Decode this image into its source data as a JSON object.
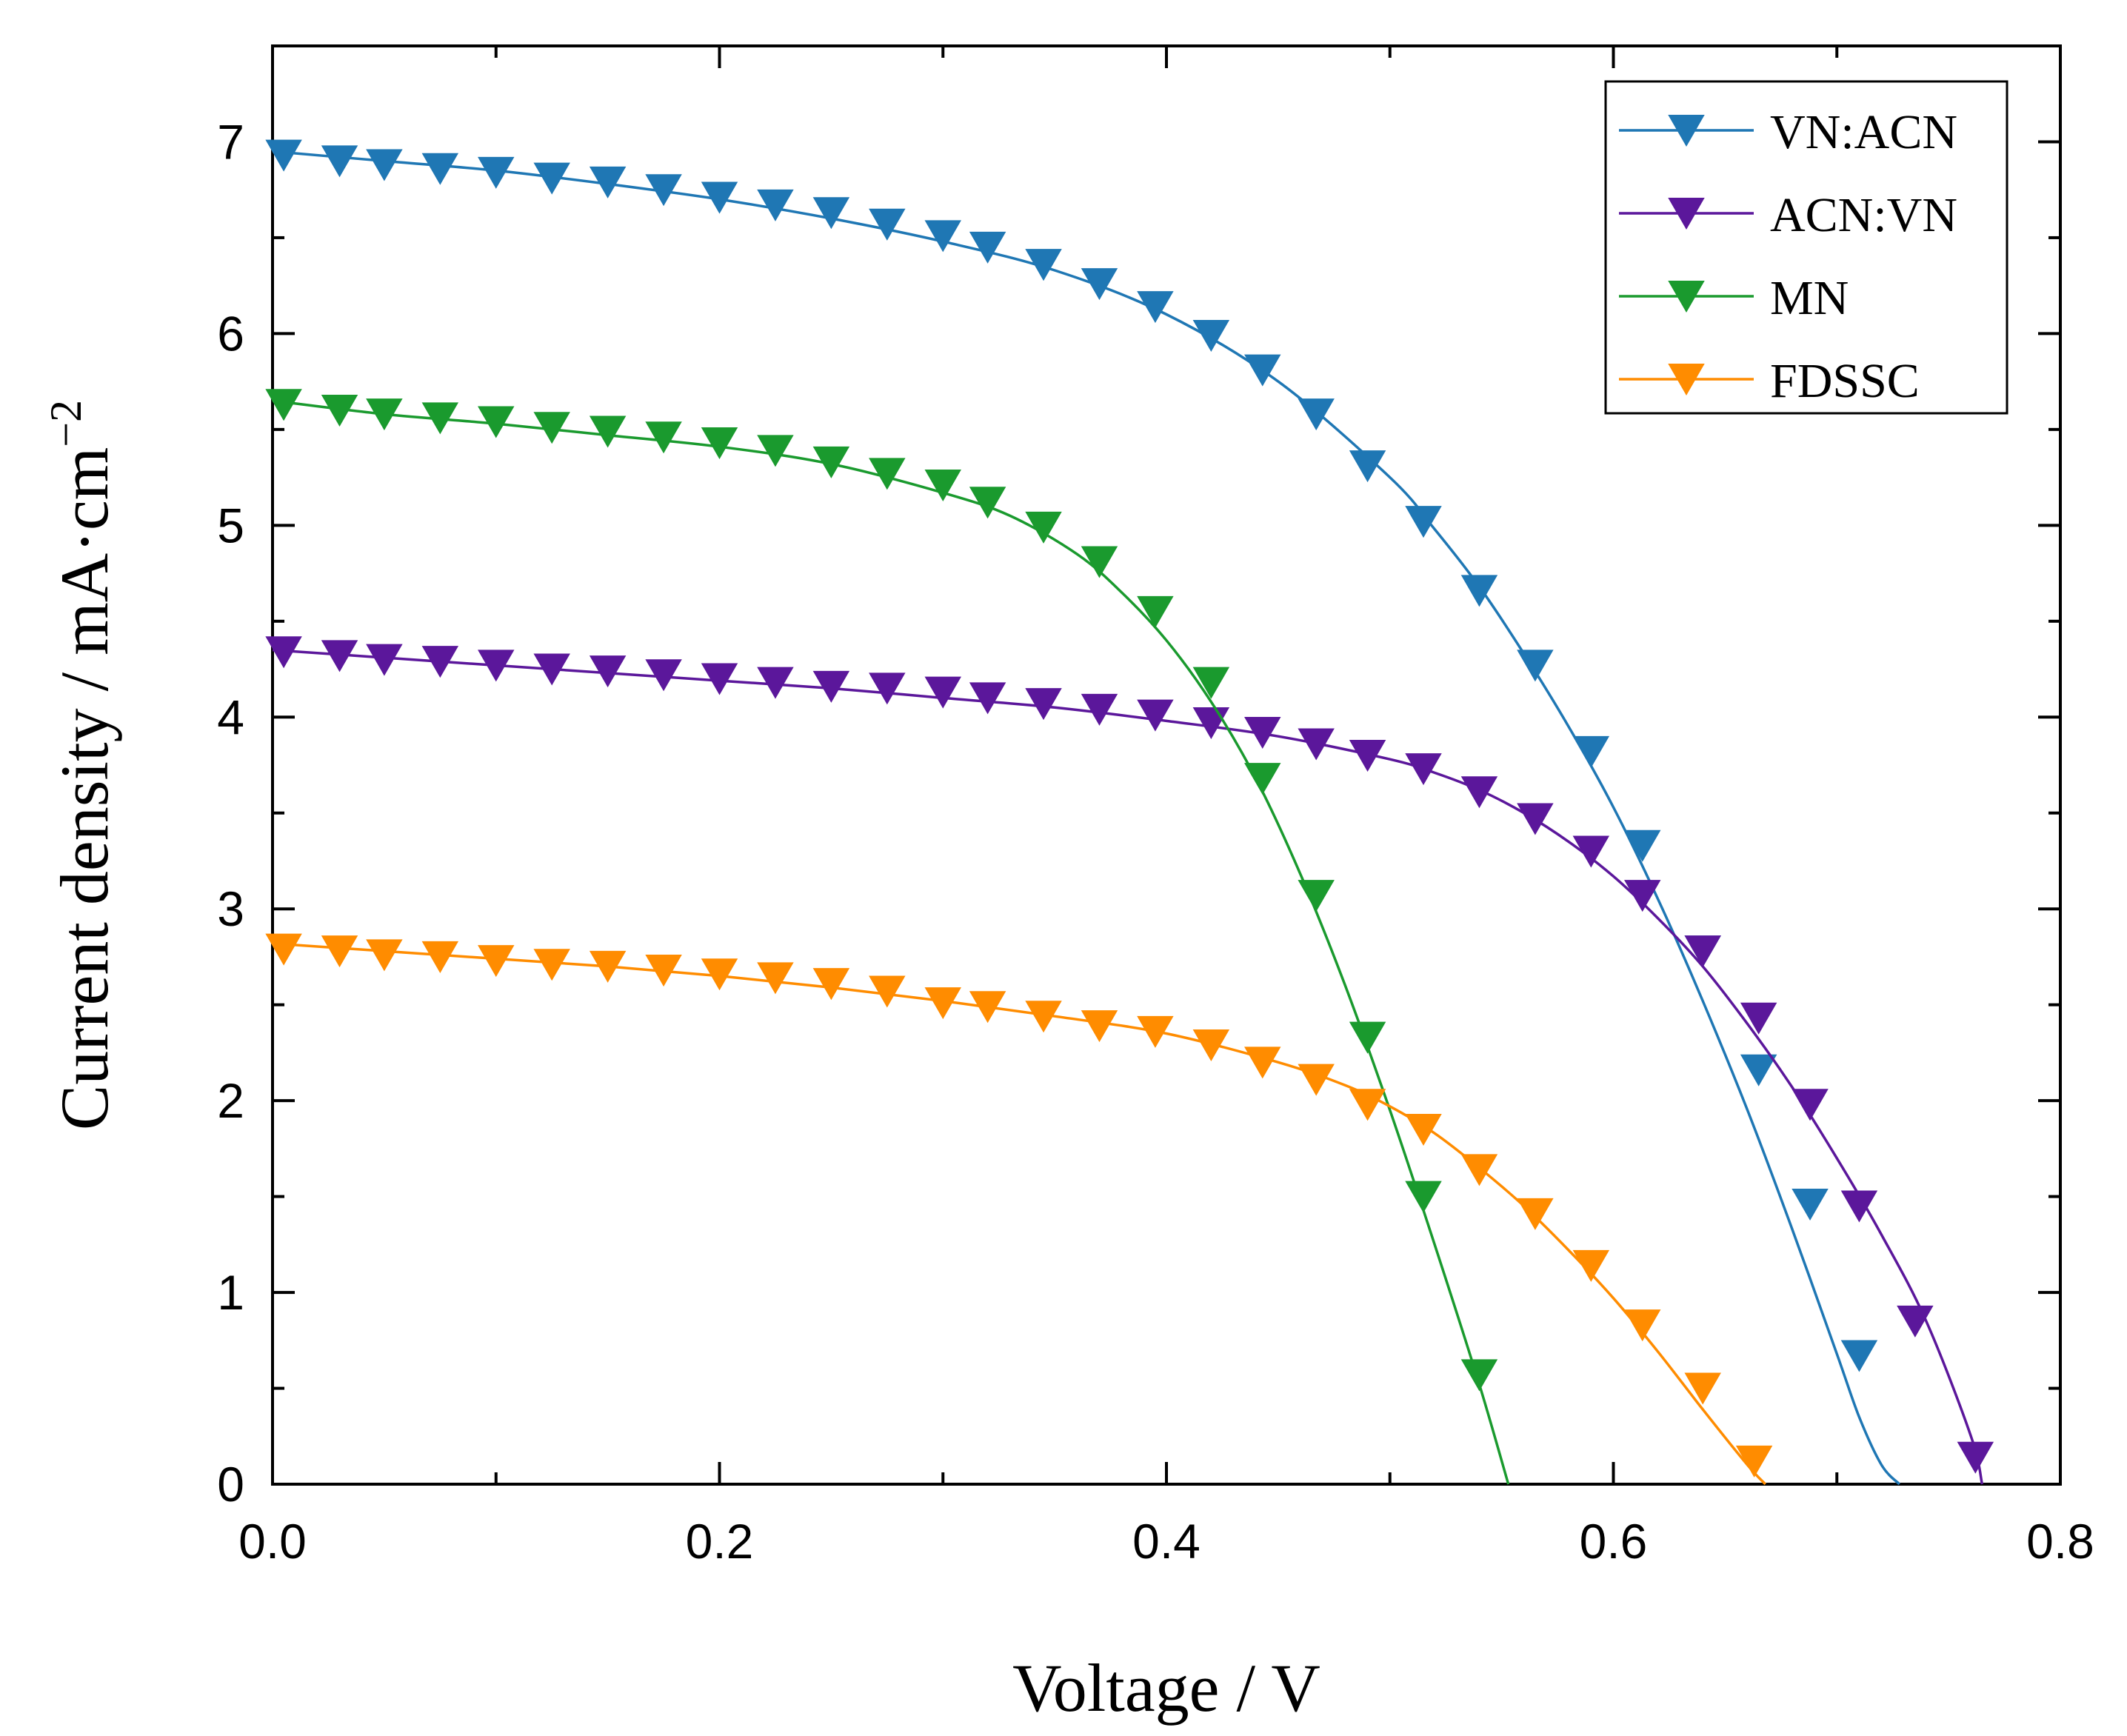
{
  "chart_data": {
    "type": "line",
    "xlabel": "Voltage / V",
    "ylabel_main": "Current density / mA·cm",
    "ylabel_sup": "−2",
    "xlim": [
      0,
      0.8
    ],
    "ylim": [
      0,
      7.5
    ],
    "xticks": [
      0,
      0.2,
      0.4,
      0.6,
      0.8
    ],
    "xtick_labels": [
      "0.0",
      "0.2",
      "0.4",
      "0.6",
      "0.8"
    ],
    "yticks": [
      0,
      1,
      2,
      3,
      4,
      5,
      6,
      7
    ],
    "ytick_labels": [
      "0",
      "1",
      "2",
      "3",
      "4",
      "5",
      "6",
      "7"
    ],
    "grid": false,
    "legend_position": "top-right",
    "marker": "triangle-down",
    "series": [
      {
        "name": "VN:ACN",
        "color": "#1f77b4",
        "curve_x": [
          0,
          0.05,
          0.1,
          0.15,
          0.2,
          0.25,
          0.3,
          0.35,
          0.4,
          0.45,
          0.5,
          0.52,
          0.54,
          0.56,
          0.58,
          0.6,
          0.62,
          0.64,
          0.66,
          0.68,
          0.7,
          0.71,
          0.72,
          0.728
        ],
        "curve_y": [
          6.95,
          6.9,
          6.85,
          6.78,
          6.7,
          6.6,
          6.48,
          6.33,
          6.1,
          5.75,
          5.25,
          4.98,
          4.68,
          4.33,
          3.95,
          3.53,
          3.05,
          2.52,
          1.95,
          1.33,
          0.68,
          0.35,
          0.1,
          0
        ],
        "markers_x": [
          0.005,
          0.03,
          0.05,
          0.075,
          0.1,
          0.125,
          0.15,
          0.175,
          0.2,
          0.225,
          0.25,
          0.275,
          0.3,
          0.32,
          0.345,
          0.37,
          0.395,
          0.42,
          0.443,
          0.467,
          0.49,
          0.515,
          0.54,
          0.565,
          0.59,
          0.613,
          0.64,
          0.665,
          0.688,
          0.71
        ],
        "markers_y": [
          6.93,
          6.9,
          6.88,
          6.86,
          6.84,
          6.81,
          6.79,
          6.75,
          6.71,
          6.67,
          6.63,
          6.57,
          6.51,
          6.45,
          6.36,
          6.26,
          6.14,
          5.99,
          5.81,
          5.58,
          5.31,
          5.02,
          4.66,
          4.27,
          3.82,
          3.33,
          2.78,
          2.16,
          1.46,
          0.67
        ]
      },
      {
        "name": "ACN:VN",
        "color": "#5b179b",
        "curve_x": [
          0,
          0.05,
          0.1,
          0.15,
          0.2,
          0.25,
          0.3,
          0.35,
          0.4,
          0.45,
          0.5,
          0.52,
          0.54,
          0.56,
          0.58,
          0.6,
          0.62,
          0.64,
          0.66,
          0.68,
          0.7,
          0.72,
          0.74,
          0.76,
          0.765
        ],
        "curve_y": [
          4.35,
          4.31,
          4.27,
          4.23,
          4.19,
          4.15,
          4.1,
          4.05,
          3.98,
          3.9,
          3.78,
          3.71,
          3.62,
          3.5,
          3.35,
          3.17,
          2.95,
          2.7,
          2.4,
          2.07,
          1.7,
          1.3,
          0.85,
          0.25,
          0
        ],
        "markers_x": [
          0.005,
          0.03,
          0.05,
          0.075,
          0.1,
          0.125,
          0.15,
          0.175,
          0.2,
          0.225,
          0.25,
          0.275,
          0.3,
          0.32,
          0.345,
          0.37,
          0.395,
          0.42,
          0.443,
          0.467,
          0.49,
          0.515,
          0.54,
          0.565,
          0.59,
          0.613,
          0.64,
          0.665,
          0.688,
          0.71,
          0.735,
          0.762
        ],
        "markers_y": [
          4.34,
          4.32,
          4.3,
          4.29,
          4.27,
          4.25,
          4.24,
          4.22,
          4.2,
          4.18,
          4.16,
          4.15,
          4.13,
          4.1,
          4.07,
          4.04,
          4.01,
          3.97,
          3.92,
          3.86,
          3.8,
          3.73,
          3.61,
          3.47,
          3.3,
          3.07,
          2.78,
          2.43,
          1.98,
          1.45,
          0.85,
          0.14
        ]
      },
      {
        "name": "MN",
        "color": "#1a9a2e",
        "curve_x": [
          0,
          0.05,
          0.1,
          0.15,
          0.2,
          0.25,
          0.3,
          0.33,
          0.36,
          0.38,
          0.4,
          0.42,
          0.44,
          0.46,
          0.48,
          0.5,
          0.52,
          0.54,
          0.553
        ],
        "curve_y": [
          5.65,
          5.58,
          5.53,
          5.47,
          5.41,
          5.32,
          5.17,
          5.05,
          4.85,
          4.65,
          4.4,
          4.08,
          3.68,
          3.18,
          2.6,
          1.95,
          1.25,
          0.52,
          0
        ],
        "markers_x": [
          0.005,
          0.03,
          0.05,
          0.075,
          0.1,
          0.125,
          0.15,
          0.175,
          0.2,
          0.225,
          0.25,
          0.275,
          0.3,
          0.32,
          0.345,
          0.37,
          0.395,
          0.42,
          0.443,
          0.467,
          0.49,
          0.515,
          0.54
        ],
        "markers_y": [
          5.63,
          5.6,
          5.58,
          5.56,
          5.54,
          5.51,
          5.49,
          5.46,
          5.43,
          5.39,
          5.33,
          5.27,
          5.21,
          5.12,
          4.99,
          4.81,
          4.55,
          4.18,
          3.68,
          3.07,
          2.33,
          1.5,
          0.57
        ]
      },
      {
        "name": "FDSSC",
        "color": "#ff8c00",
        "curve_x": [
          0,
          0.05,
          0.1,
          0.15,
          0.2,
          0.25,
          0.3,
          0.35,
          0.4,
          0.45,
          0.48,
          0.5,
          0.52,
          0.54,
          0.56,
          0.58,
          0.6,
          0.62,
          0.64,
          0.66,
          0.668
        ],
        "curve_y": [
          2.82,
          2.78,
          2.74,
          2.7,
          2.65,
          2.59,
          2.52,
          2.44,
          2.35,
          2.2,
          2.08,
          1.97,
          1.83,
          1.65,
          1.45,
          1.22,
          0.97,
          0.69,
          0.39,
          0.1,
          0
        ],
        "markers_x": [
          0.005,
          0.03,
          0.05,
          0.075,
          0.1,
          0.125,
          0.15,
          0.175,
          0.2,
          0.225,
          0.25,
          0.275,
          0.3,
          0.32,
          0.345,
          0.37,
          0.395,
          0.42,
          0.443,
          0.467,
          0.49,
          0.515,
          0.54,
          0.565,
          0.59,
          0.613,
          0.64,
          0.663
        ],
        "markers_y": [
          2.79,
          2.78,
          2.76,
          2.75,
          2.73,
          2.71,
          2.7,
          2.68,
          2.66,
          2.64,
          2.61,
          2.57,
          2.51,
          2.49,
          2.44,
          2.39,
          2.36,
          2.29,
          2.2,
          2.11,
          1.98,
          1.85,
          1.64,
          1.41,
          1.14,
          0.83,
          0.5,
          0.12
        ]
      }
    ]
  }
}
